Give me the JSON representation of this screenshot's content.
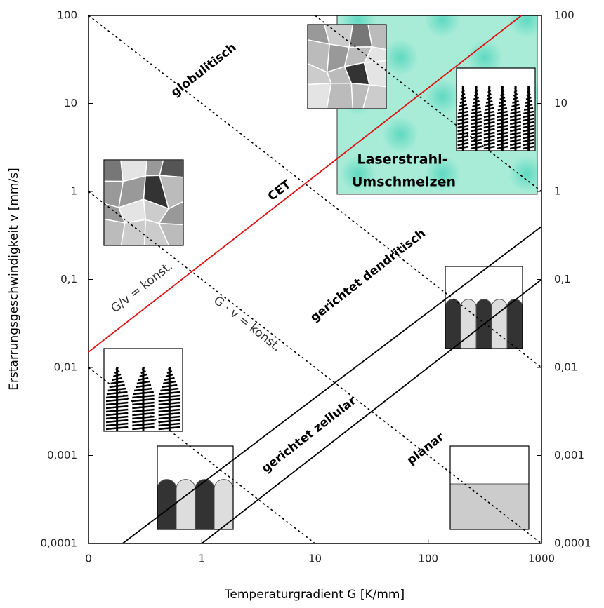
{
  "chart_data": {
    "type": "line",
    "xlabel": "Temperaturgradient G [K/mm]",
    "ylabel": "Erstarrungsgeschwindigkeit v [mm/s]",
    "log_x": true,
    "log_y": true,
    "xlim": [
      0.1,
      1000
    ],
    "xticks": [
      {
        "value": 0.1,
        "label": "0"
      },
      1,
      10,
      100,
      1000
    ],
    "ylim": [
      0.0001,
      100
    ],
    "yticks": [
      {
        "value": 0.0001,
        "label": "0,0001"
      },
      {
        "value": 0.001,
        "label": "0,001"
      },
      {
        "value": 0.01,
        "label": "0,01"
      },
      {
        "value": 0.1,
        "label": "0,1"
      },
      1,
      10,
      100
    ],
    "y2lim": [
      0.0001,
      100
    ],
    "y2ticks": [
      {
        "value": 0.0001,
        "label": "0,0001"
      },
      {
        "value": 0.001,
        "label": "0,001"
      },
      {
        "value": 0.01,
        "label": "0,01"
      },
      {
        "value": 0.1,
        "label": "0,1"
      },
      1,
      10,
      100
    ],
    "series": [
      {
        "color": "#e01010",
        "style": "solid",
        "x": [
          0.1,
          666
        ],
        "values": [
          0.015,
          100
        ]
      },
      {
        "color": "#000000",
        "style": "solid",
        "x": [
          0.2,
          1000
        ],
        "values": [
          0.0001,
          0.4
        ]
      },
      {
        "color": "#000000",
        "style": "solid",
        "x": [
          1,
          1000
        ],
        "values": [
          0.0001,
          0.1
        ]
      },
      {
        "color": "#000000",
        "style": "dotted",
        "x": [
          0.1,
          1000
        ],
        "values": [
          100,
          0.01
        ]
      },
      {
        "color": "#000000",
        "style": "dotted",
        "x": [
          0.1,
          1000
        ],
        "values": [
          1,
          0.0001
        ]
      },
      {
        "color": "#000000",
        "style": "dotted",
        "x": [
          0.1,
          10
        ],
        "values": [
          0.01,
          0.0001
        ]
      },
      {
        "color": "#000000",
        "style": "dotted",
        "x": [
          10,
          1000
        ],
        "values": [
          100,
          1
        ]
      }
    ],
    "annotations": [
      "globulitisch",
      "CET",
      "gerichtet dendritisch",
      "gerichtet zellular",
      "planar",
      "G/v = konst.",
      "G · v = konst.",
      "Laserstrahl-",
      "Umschmelzen"
    ]
  }
}
